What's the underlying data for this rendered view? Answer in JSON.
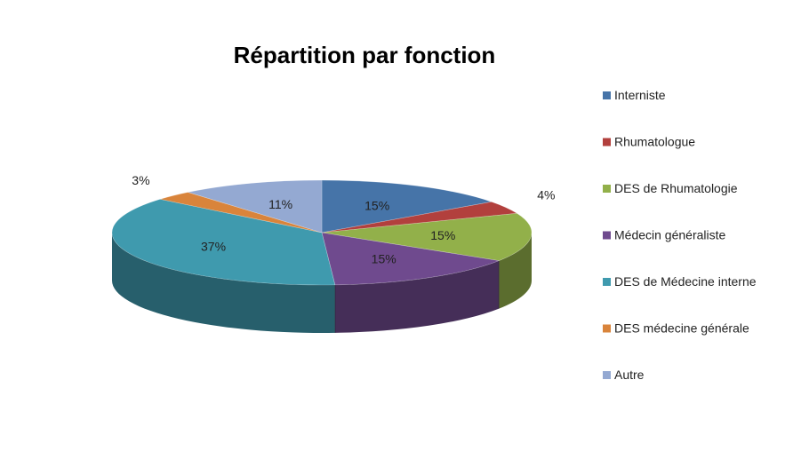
{
  "chart_data": {
    "type": "pie",
    "title": "Répartition par fonction",
    "categories": [
      "Interniste",
      "Rhumatologue",
      "DES de Rhumatologie",
      "Médecin généraliste",
      "DES de Médecine interne",
      "DES médecine générale",
      "Autre"
    ],
    "values": [
      15,
      4,
      15,
      15,
      37,
      3,
      11
    ],
    "labels": [
      "15%",
      "4%",
      "15%",
      "15%",
      "37%",
      "3%",
      "11%"
    ],
    "colors": [
      "#4674A8",
      "#B2403D",
      "#92B04A",
      "#6F4A8E",
      "#3F9AAE",
      "#D9843B",
      "#94A9D2"
    ],
    "legend_position": "right",
    "style": "3d-pie"
  }
}
